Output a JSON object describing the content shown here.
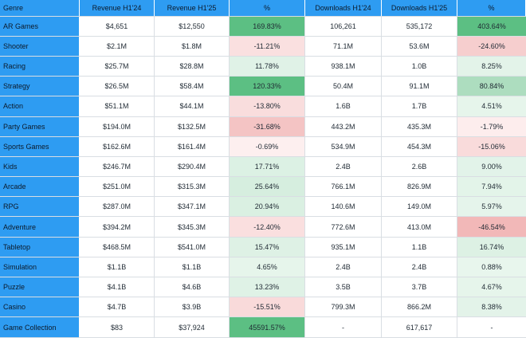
{
  "chart_data": {
    "type": "table",
    "columns": [
      "Genre",
      "Revenue H1'24",
      "Revenue H1'25",
      "%",
      "Downloads H1'24",
      "Downloads H1'25",
      "%"
    ],
    "rows": [
      [
        "AR Games",
        "$4,651",
        "$12,550",
        "169.83%",
        "106,261",
        "535,172",
        "403.64%"
      ],
      [
        "Shooter",
        "$2.1M",
        "$1.8M",
        "-11.21%",
        "71.1M",
        "53.6M",
        "-24.60%"
      ],
      [
        "Racing",
        "$25.7M",
        "$28.8M",
        "11.78%",
        "938.1M",
        "1.0B",
        "8.25%"
      ],
      [
        "Strategy",
        "$26.5M",
        "$58.4M",
        "120.33%",
        "50.4M",
        "91.1M",
        "80.84%"
      ],
      [
        "Action",
        "$51.1M",
        "$44.1M",
        "-13.80%",
        "1.6B",
        "1.7B",
        "4.51%"
      ],
      [
        "Party Games",
        "$194.0M",
        "$132.5M",
        "-31.68%",
        "443.2M",
        "435.3M",
        "-1.79%"
      ],
      [
        "Sports Games",
        "$162.6M",
        "$161.4M",
        "-0.69%",
        "534.9M",
        "454.3M",
        "-15.06%"
      ],
      [
        "Kids",
        "$246.7M",
        "$290.4M",
        "17.71%",
        "2.4B",
        "2.6B",
        "9.00%"
      ],
      [
        "Arcade",
        "$251.0M",
        "$315.3M",
        "25.64%",
        "766.1M",
        "826.9M",
        "7.94%"
      ],
      [
        "RPG",
        "$287.0M",
        "$347.1M",
        "20.94%",
        "140.6M",
        "149.0M",
        "5.97%"
      ],
      [
        "Adventure",
        "$394.2M",
        "$345.3M",
        "-12.40%",
        "772.6M",
        "413.0M",
        "-46.54%"
      ],
      [
        "Tabletop",
        "$468.5M",
        "$541.0M",
        "15.47%",
        "935.1M",
        "1.1B",
        "16.74%"
      ],
      [
        "Simulation",
        "$1.1B",
        "$1.1B",
        "4.65%",
        "2.4B",
        "2.4B",
        "0.88%"
      ],
      [
        "Puzzle",
        "$4.1B",
        "$4.6B",
        "13.23%",
        "3.5B",
        "3.7B",
        "4.67%"
      ],
      [
        "Casino",
        "$4.7B",
        "$3.9B",
        "-15.51%",
        "799.3M",
        "866.2M",
        "8.38%"
      ],
      [
        "Game Collection",
        "$83",
        "$37,924",
        "45591.57%",
        "-",
        "617,617",
        "-"
      ]
    ],
    "heatmap_columns": [
      3,
      6
    ],
    "colors": {
      "header_bg": "#2e9cf2",
      "positive_strong": "#5cbf83",
      "positive_light": "#e9f6ee",
      "negative_strong": "#f2b8b8",
      "negative_light": "#fdf0f0",
      "grid": "#d9dee3"
    }
  }
}
